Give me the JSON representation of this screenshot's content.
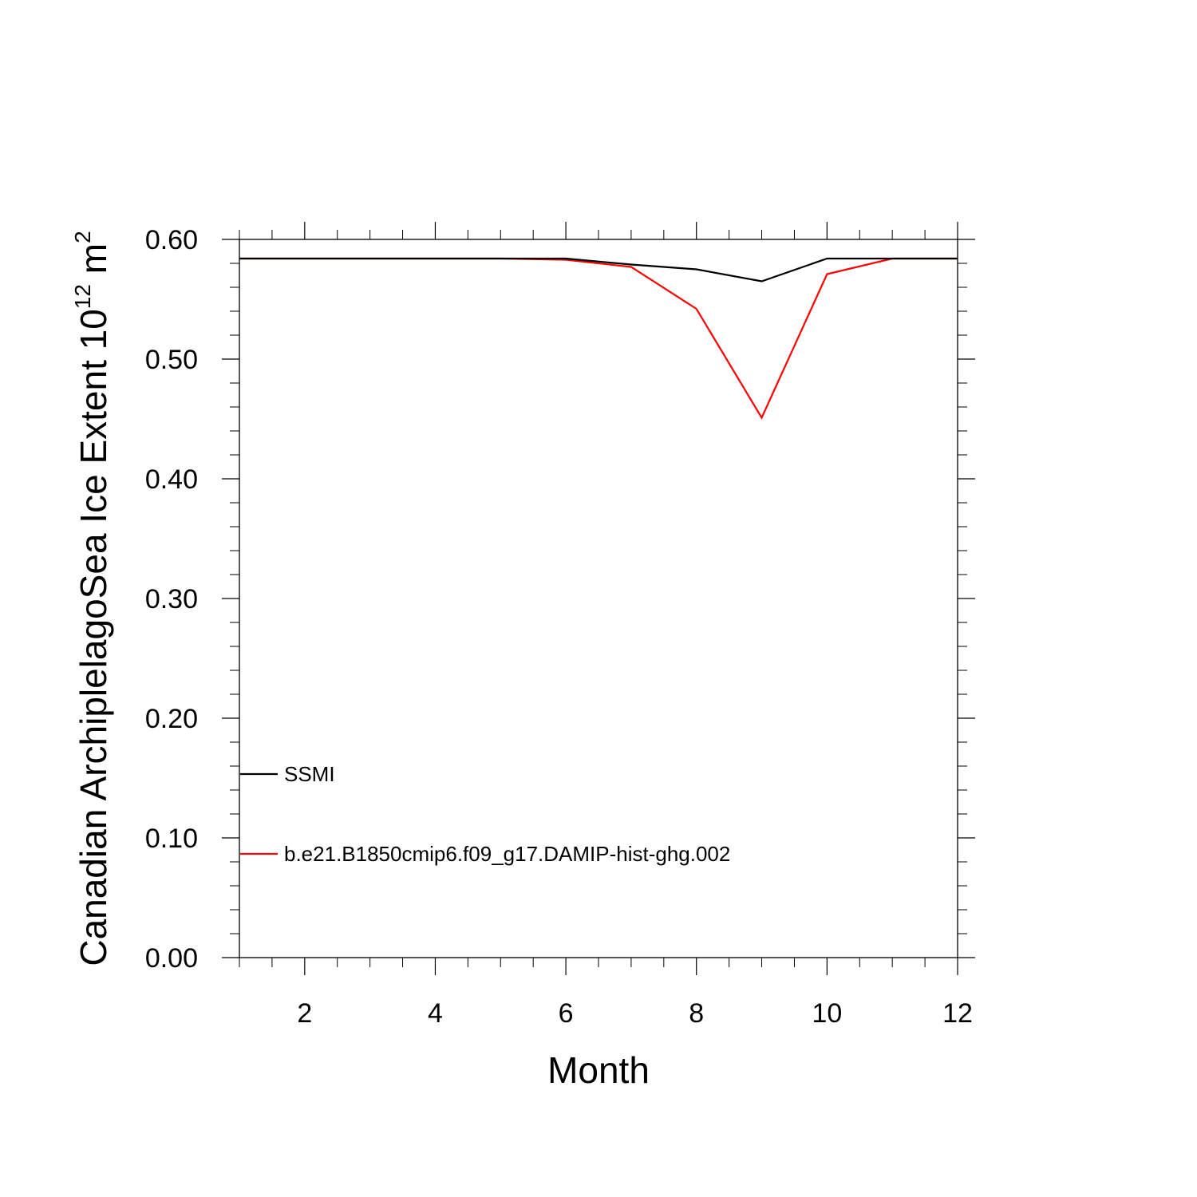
{
  "chart_data": {
    "type": "line",
    "title": "",
    "xlabel": "Month",
    "ylabel": {
      "base": "Canadian ArchiplelagoSea Ice Extent 10",
      "sup1": "12",
      "mid": " m",
      "sup2": "2"
    },
    "xlim": [
      1,
      12
    ],
    "ylim": [
      0,
      0.6
    ],
    "x_ticks": [
      2,
      4,
      6,
      8,
      10,
      12
    ],
    "y_ticks": [
      "0.00",
      "0.10",
      "0.20",
      "0.30",
      "0.40",
      "0.50",
      "0.60"
    ],
    "x": [
      1,
      2,
      3,
      4,
      5,
      6,
      7,
      8,
      9,
      10,
      11,
      12
    ],
    "series": [
      {
        "name": "SSMI",
        "color": "#000000",
        "values": [
          0.584,
          0.584,
          0.584,
          0.584,
          0.584,
          0.584,
          0.579,
          0.575,
          0.565,
          0.584,
          0.584,
          0.584
        ]
      },
      {
        "name": "b.e21.B1850cmip6.f09_g17.DAMIP-hist-ghg.002",
        "color": "#ff0000",
        "values": [
          0.584,
          0.584,
          0.584,
          0.584,
          0.584,
          0.583,
          0.577,
          0.542,
          0.451,
          0.571,
          0.584,
          0.584
        ]
      }
    ],
    "legend_position": "lower-left",
    "grid": false
  }
}
